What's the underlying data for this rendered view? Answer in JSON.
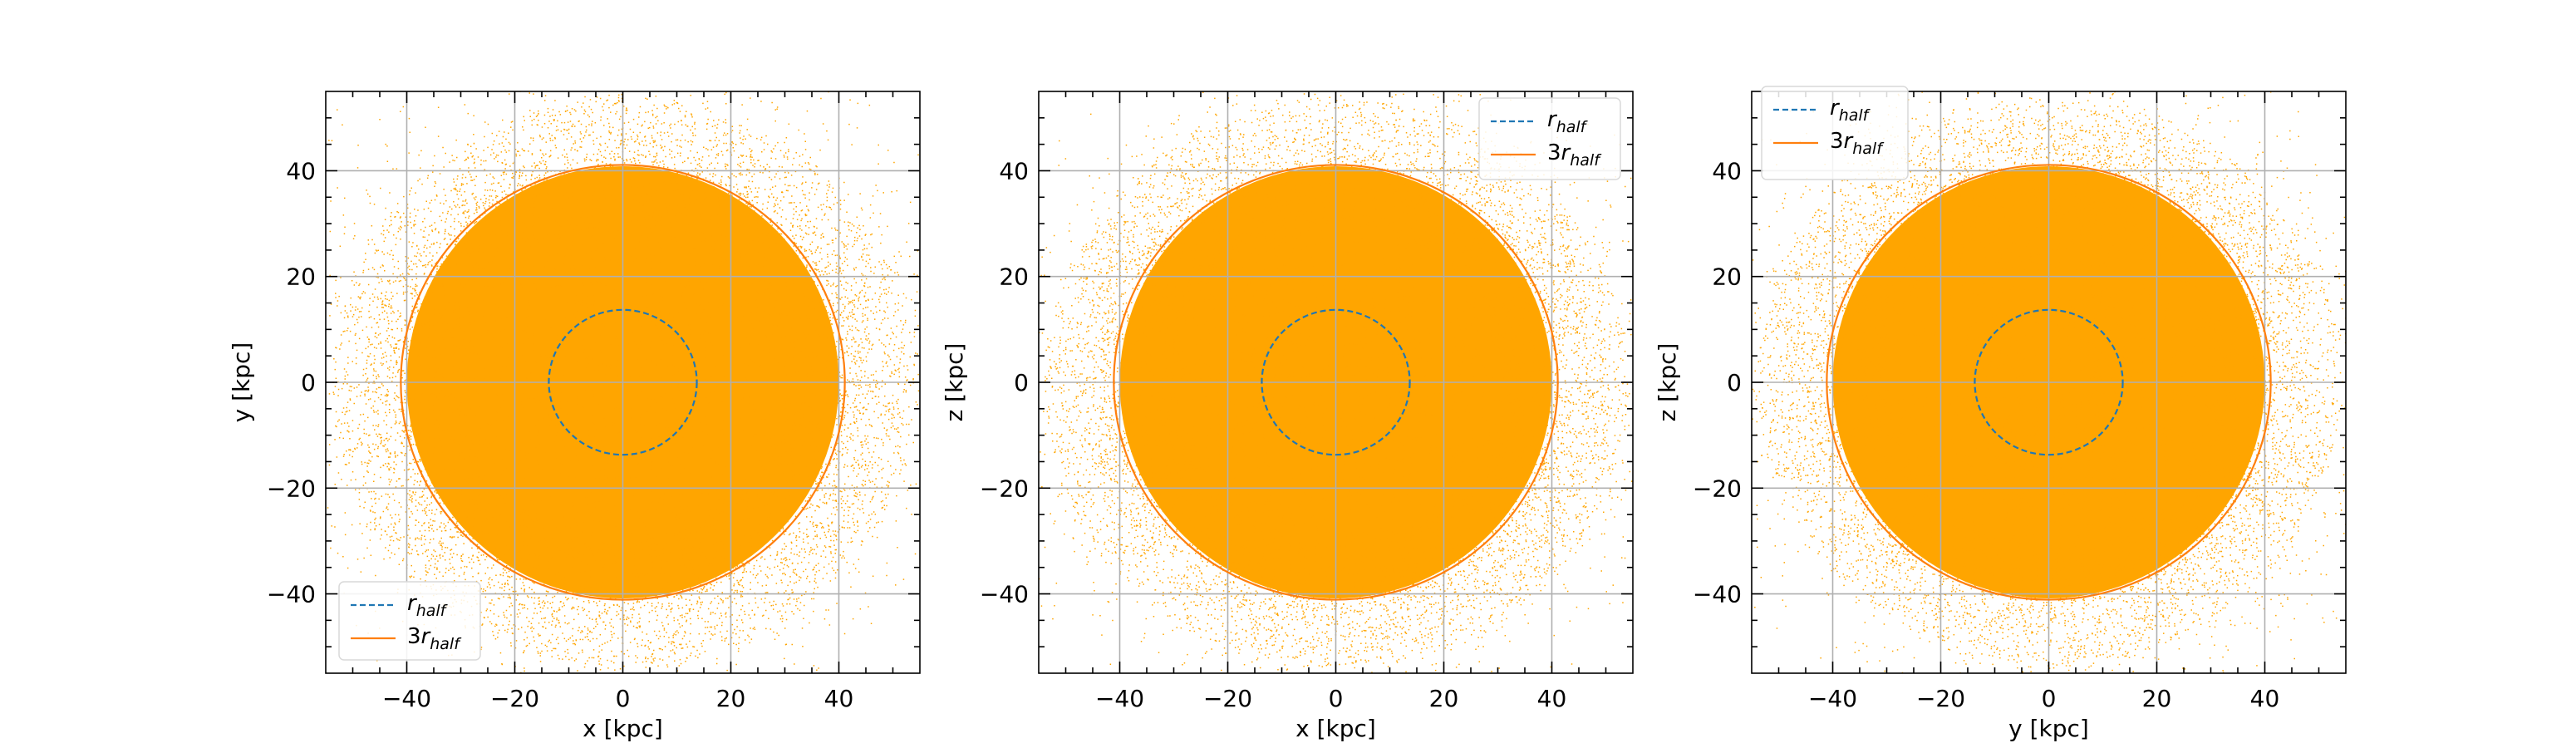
{
  "chart_data": [
    {
      "type": "scatter",
      "xlabel": "x [kpc]",
      "ylabel": "y [kpc]",
      "xlim": [
        -55,
        55
      ],
      "ylim": [
        -55,
        55
      ],
      "xticks": [
        "−40",
        "−20",
        "0",
        "20",
        "40"
      ],
      "yticks": [
        "−40",
        "−20",
        "0",
        "20",
        "40"
      ],
      "grid": true,
      "scatter_color": "#ffa500",
      "legend_placement": "lower-left",
      "circles": [
        {
          "label_base": "r",
          "label_sub": "half",
          "radius": 13.7,
          "style": "dashed",
          "color": "#1f77b4"
        },
        {
          "label_base": "3r",
          "label_sub": "half",
          "radius": 41.1,
          "style": "solid",
          "color": "#ff7f0e"
        }
      ]
    },
    {
      "type": "scatter",
      "xlabel": "x [kpc]",
      "ylabel": "z [kpc]",
      "xlim": [
        -55,
        55
      ],
      "ylim": [
        -55,
        55
      ],
      "xticks": [
        "−40",
        "−20",
        "0",
        "20",
        "40"
      ],
      "yticks": [
        "−40",
        "−20",
        "0",
        "20",
        "40"
      ],
      "grid": true,
      "scatter_color": "#ffa500",
      "legend_placement": "top-right",
      "circles": [
        {
          "label_base": "r",
          "label_sub": "half",
          "radius": 13.7,
          "style": "dashed",
          "color": "#1f77b4"
        },
        {
          "label_base": "3r",
          "label_sub": "half",
          "radius": 41.1,
          "style": "solid",
          "color": "#ff7f0e"
        }
      ]
    },
    {
      "type": "scatter",
      "xlabel": "y [kpc]",
      "ylabel": "z [kpc]",
      "xlim": [
        -55,
        55
      ],
      "ylim": [
        -55,
        55
      ],
      "xticks": [
        "−40",
        "−20",
        "0",
        "20",
        "40"
      ],
      "yticks": [
        "−40",
        "−20",
        "0",
        "20",
        "40"
      ],
      "grid": true,
      "scatter_color": "#ffa500",
      "legend_placement": "top-left",
      "circles": [
        {
          "label_base": "r",
          "label_sub": "half",
          "radius": 13.7,
          "style": "dashed",
          "color": "#1f77b4"
        },
        {
          "label_base": "3r",
          "label_sub": "half",
          "radius": 41.1,
          "style": "solid",
          "color": "#ff7f0e"
        }
      ]
    }
  ]
}
